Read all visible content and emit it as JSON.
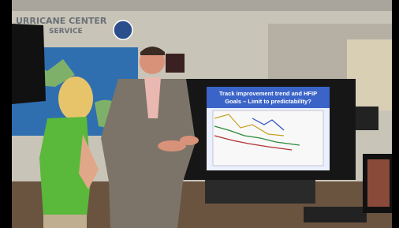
{
  "wall_sign": {
    "line1": "URRICANE CENTER",
    "line2": "SERVICE"
  },
  "screen": {
    "title_line1": "Track improvement trend and HFIP",
    "title_line2": "Goals – Limit to predictability?"
  }
}
